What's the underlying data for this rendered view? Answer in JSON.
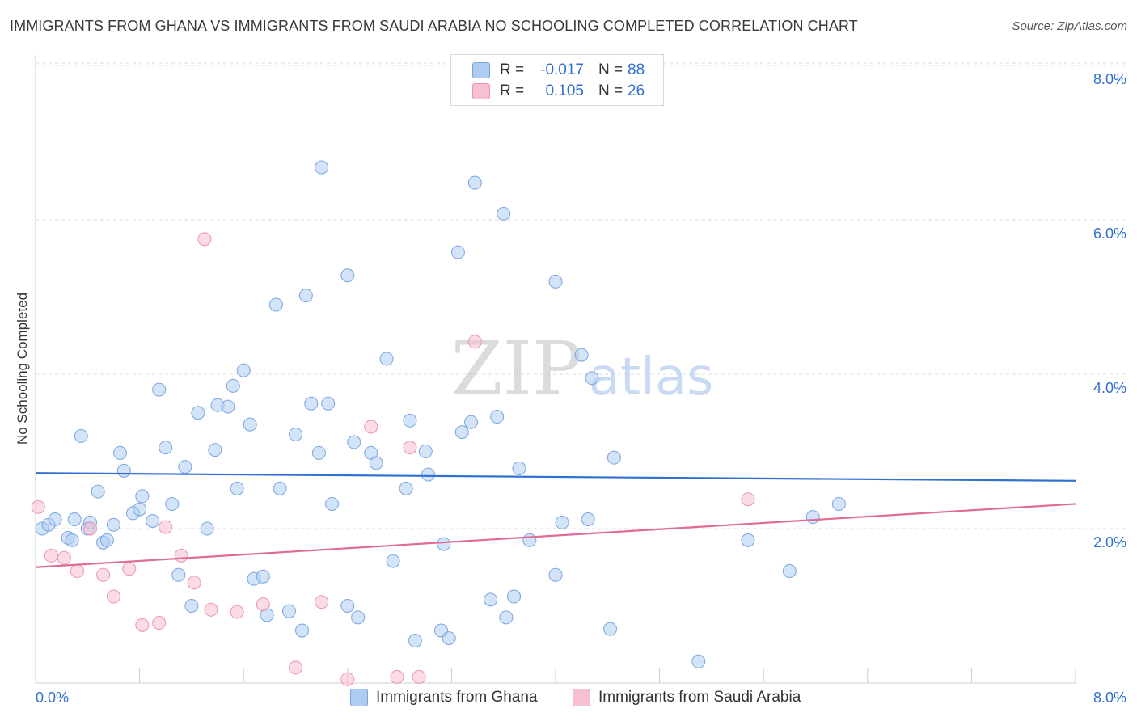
{
  "header": {
    "title": "IMMIGRANTS FROM GHANA VS IMMIGRANTS FROM SAUDI ARABIA NO SCHOOLING COMPLETED CORRELATION CHART",
    "source": "Source: ZipAtlas.com"
  },
  "watermark": "ZIPatlas",
  "stats": {
    "ghana": {
      "r_label": "R =",
      "r": "-0.017",
      "n_label": "N =",
      "n": "88"
    },
    "saudi": {
      "r_label": "R =",
      "r": "0.105",
      "n_label": "N =",
      "n": "26"
    }
  },
  "legend": {
    "ghana": "Immigrants from Ghana",
    "saudi": "Immigrants from Saudi Arabia"
  },
  "colors": {
    "ghana_fill": "#aeccf2",
    "ghana_stroke": "#7aa6e0",
    "ghana_line": "#3071d0",
    "saudi_fill": "#f7c0d0",
    "saudi_stroke": "#ec94b0",
    "saudi_line": "#e06c95",
    "axis_text": "#2f6fd0"
  },
  "chart_data": {
    "type": "scatter",
    "title": "IMMIGRANTS FROM GHANA VS IMMIGRANTS FROM SAUDI ARABIA NO SCHOOLING COMPLETED CORRELATION CHART",
    "xlabel": "",
    "ylabel": "No Schooling Completed",
    "xlim": [
      0,
      8.1
    ],
    "ylim": [
      0,
      8.1
    ],
    "x_tick_labels": [
      "0.0%",
      "8.0%"
    ],
    "y_tick_labels": [
      "2.0%",
      "4.0%",
      "6.0%",
      "8.0%"
    ],
    "y_ticks": [
      2,
      4,
      6,
      8
    ],
    "grid": true,
    "legend_position": "bottom",
    "series": [
      {
        "name": "Immigrants from Ghana",
        "trend": [
          [
            0,
            2.72
          ],
          [
            8.0,
            2.62
          ]
        ],
        "points": [
          [
            0.05,
            2.0
          ],
          [
            0.1,
            2.05
          ],
          [
            0.15,
            2.12
          ],
          [
            0.25,
            1.88
          ],
          [
            0.28,
            1.85
          ],
          [
            0.3,
            2.12
          ],
          [
            0.35,
            3.2
          ],
          [
            0.4,
            2.0
          ],
          [
            0.42,
            2.08
          ],
          [
            0.48,
            2.48
          ],
          [
            0.52,
            1.82
          ],
          [
            0.55,
            1.85
          ],
          [
            0.6,
            2.05
          ],
          [
            0.65,
            2.98
          ],
          [
            0.68,
            2.75
          ],
          [
            0.75,
            2.2
          ],
          [
            0.8,
            2.25
          ],
          [
            0.82,
            2.42
          ],
          [
            0.9,
            2.1
          ],
          [
            0.95,
            3.8
          ],
          [
            1.0,
            3.05
          ],
          [
            1.05,
            2.32
          ],
          [
            1.1,
            1.4
          ],
          [
            1.15,
            2.8
          ],
          [
            1.2,
            1.0
          ],
          [
            1.25,
            3.5
          ],
          [
            1.32,
            2.0
          ],
          [
            1.38,
            3.02
          ],
          [
            1.4,
            3.6
          ],
          [
            1.48,
            3.58
          ],
          [
            1.52,
            3.85
          ],
          [
            1.55,
            2.52
          ],
          [
            1.6,
            4.05
          ],
          [
            1.65,
            3.35
          ],
          [
            1.68,
            1.35
          ],
          [
            1.75,
            1.38
          ],
          [
            1.78,
            0.88
          ],
          [
            1.85,
            4.9
          ],
          [
            1.88,
            2.52
          ],
          [
            1.95,
            0.93
          ],
          [
            2.0,
            3.22
          ],
          [
            2.05,
            0.68
          ],
          [
            2.08,
            5.02
          ],
          [
            2.12,
            3.62
          ],
          [
            2.18,
            2.98
          ],
          [
            2.2,
            6.68
          ],
          [
            2.25,
            3.62
          ],
          [
            2.28,
            2.32
          ],
          [
            2.4,
            5.28
          ],
          [
            2.45,
            3.12
          ],
          [
            2.48,
            0.85
          ],
          [
            2.58,
            2.98
          ],
          [
            2.62,
            2.85
          ],
          [
            2.7,
            4.2
          ],
          [
            2.75,
            1.58
          ],
          [
            2.85,
            2.52
          ],
          [
            2.88,
            3.4
          ],
          [
            2.92,
            0.55
          ],
          [
            3.0,
            3.0
          ],
          [
            3.02,
            2.7
          ],
          [
            3.12,
            0.68
          ],
          [
            3.14,
            1.8
          ],
          [
            3.18,
            0.58
          ],
          [
            3.25,
            5.58
          ],
          [
            3.28,
            3.25
          ],
          [
            3.35,
            3.38
          ],
          [
            3.38,
            6.48
          ],
          [
            3.5,
            1.08
          ],
          [
            3.55,
            3.45
          ],
          [
            3.6,
            6.08
          ],
          [
            3.62,
            0.85
          ],
          [
            3.68,
            1.12
          ],
          [
            3.72,
            2.78
          ],
          [
            3.8,
            1.85
          ],
          [
            4.0,
            5.2
          ],
          [
            4.05,
            2.08
          ],
          [
            4.2,
            4.25
          ],
          [
            4.25,
            2.12
          ],
          [
            4.28,
            3.95
          ],
          [
            4.42,
            0.7
          ],
          [
            4.45,
            2.92
          ],
          [
            5.1,
            0.28
          ],
          [
            5.48,
            1.85
          ],
          [
            5.8,
            1.45
          ],
          [
            5.98,
            2.15
          ],
          [
            6.18,
            2.32
          ],
          [
            4.0,
            1.4
          ],
          [
            2.4,
            1.0
          ]
        ]
      },
      {
        "name": "Immigrants from Saudi Arabia",
        "trend": [
          [
            0,
            1.5
          ],
          [
            8.0,
            2.32
          ]
        ],
        "points": [
          [
            0.02,
            2.28
          ],
          [
            0.12,
            1.65
          ],
          [
            0.22,
            1.62
          ],
          [
            0.32,
            1.45
          ],
          [
            0.42,
            2.0
          ],
          [
            0.52,
            1.4
          ],
          [
            0.6,
            1.12
          ],
          [
            0.72,
            1.48
          ],
          [
            0.82,
            0.75
          ],
          [
            0.95,
            0.78
          ],
          [
            1.0,
            2.02
          ],
          [
            1.12,
            1.65
          ],
          [
            1.22,
            1.3
          ],
          [
            1.3,
            5.75
          ],
          [
            1.35,
            0.95
          ],
          [
            1.55,
            0.92
          ],
          [
            1.75,
            1.02
          ],
          [
            2.0,
            0.2
          ],
          [
            2.2,
            1.05
          ],
          [
            2.4,
            0.05
          ],
          [
            2.58,
            3.32
          ],
          [
            2.78,
            0.08
          ],
          [
            2.88,
            3.05
          ],
          [
            2.95,
            0.08
          ],
          [
            3.38,
            4.42
          ],
          [
            5.48,
            2.38
          ]
        ]
      }
    ]
  }
}
